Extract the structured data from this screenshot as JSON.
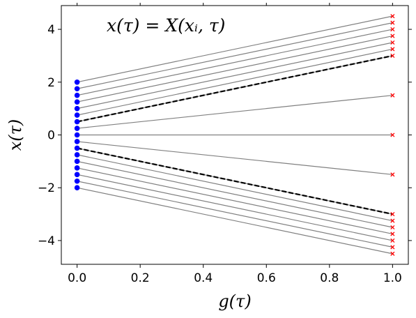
{
  "chart_data": {
    "type": "line",
    "title": "",
    "annotation": "x(τ) = X(xᵢ, τ)",
    "xlabel": "g(τ)",
    "ylabel": "x(τ)",
    "xlim": [
      -0.05,
      1.05
    ],
    "ylim": [
      -4.9,
      4.9
    ],
    "xticks": [
      0.0,
      0.2,
      0.4,
      0.6,
      0.8,
      1.0
    ],
    "xtick_labels": [
      "0.0",
      "0.2",
      "0.4",
      "0.6",
      "0.8",
      "1.0"
    ],
    "yticks": [
      -4,
      -2,
      0,
      2,
      4
    ],
    "ytick_labels": [
      "−4",
      "−2",
      "0",
      "2",
      "4"
    ],
    "grid": false,
    "start_values": [
      -2.0,
      -1.75,
      -1.5,
      -1.25,
      -1.0,
      -0.75,
      -0.5,
      -0.25,
      0.0,
      0.25,
      0.5,
      0.75,
      1.0,
      1.25,
      1.5,
      1.75,
      2.0
    ],
    "end_values": [
      -4.5,
      -4.25,
      -4.0,
      -3.75,
      -3.5,
      -3.25,
      -3.0,
      -1.5,
      0.0,
      1.5,
      3.0,
      3.25,
      3.5,
      3.75,
      4.0,
      4.25,
      4.5
    ],
    "dashed_lines": [
      {
        "x": [
          0.0,
          1.0
        ],
        "y": [
          0.5,
          3.0
        ]
      },
      {
        "x": [
          0.0,
          1.0
        ],
        "y": [
          -0.5,
          -3.0
        ]
      }
    ],
    "colors": {
      "trajectory": "#808080",
      "start_marker": "#0000ff",
      "end_marker": "#ff0000",
      "dashed": "#000000"
    }
  }
}
